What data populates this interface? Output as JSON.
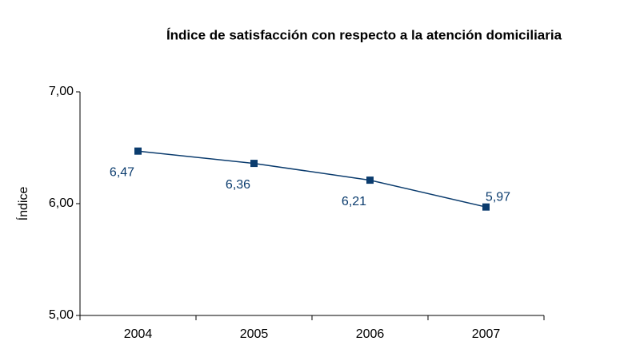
{
  "chart_data": {
    "type": "line",
    "title": "Índice de satisfacción con respecto a la atención domiciliaria",
    "y_label": "Índice",
    "categories": [
      "2004",
      "2005",
      "2006",
      "2007"
    ],
    "series": [
      {
        "name": "Índice",
        "color": "#0b3c6e",
        "values": [
          6.47,
          6.36,
          6.21,
          5.97
        ],
        "value_labels": [
          "6,47",
          "6,36",
          "6,21",
          "5,97"
        ]
      }
    ],
    "ylim": [
      5,
      7
    ],
    "yticks": [
      {
        "value": 5,
        "label": "5,00"
      },
      {
        "value": 6,
        "label": "6,00"
      },
      {
        "value": 7,
        "label": "7,00"
      }
    ],
    "grid": false
  }
}
